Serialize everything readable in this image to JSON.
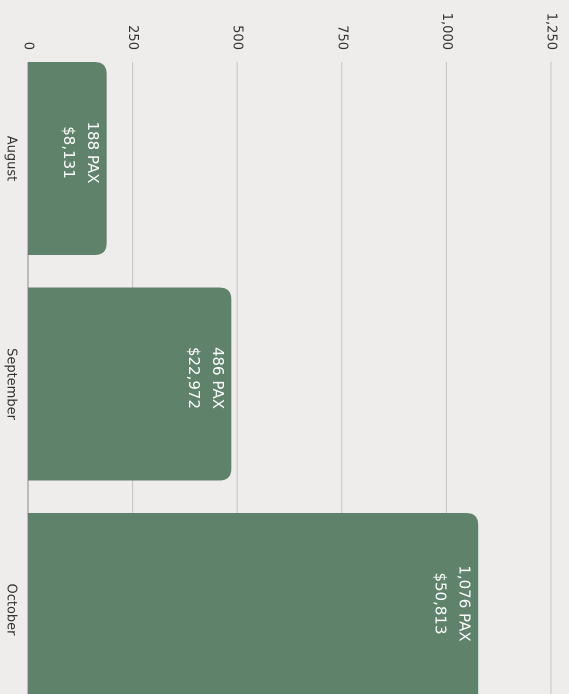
{
  "chart_data": {
    "type": "bar",
    "orientation": "horizontal",
    "categories": [
      "August",
      "September",
      "October"
    ],
    "values": [
      188,
      486,
      1076
    ],
    "value_labels": [
      "188 PAX",
      "486 PAX",
      "1,076 PAX"
    ],
    "secondary_labels": [
      "$8,131",
      "$22,972",
      "$50,813"
    ],
    "color": "#5e836a",
    "xlim": [
      0,
      1250
    ],
    "xticks": [
      0,
      250,
      500,
      750,
      {
        "value": 1000,
        "label": "1,000"
      },
      {
        "value": 1250,
        "label": "1,250"
      }
    ],
    "grid": true
  }
}
